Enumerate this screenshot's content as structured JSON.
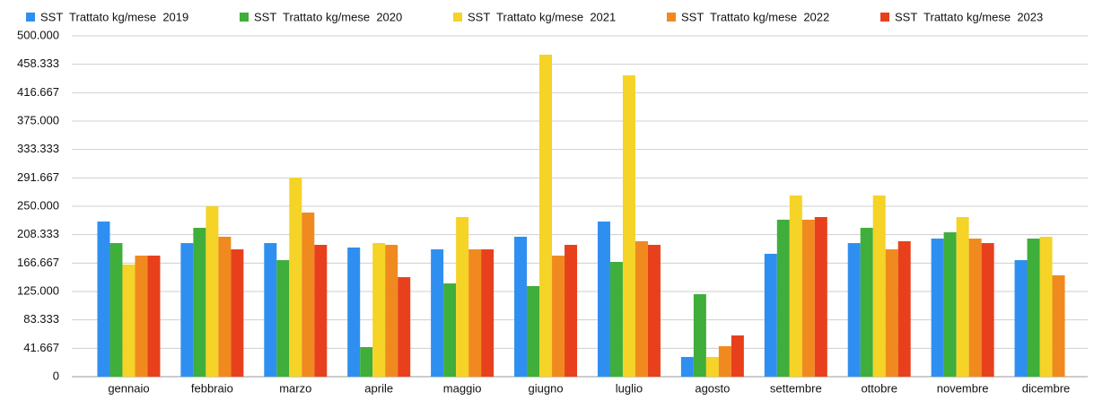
{
  "chart_data": {
    "type": "bar",
    "categories": [
      "gennaio",
      "febbraio",
      "marzo",
      "aprile",
      "maggio",
      "giugno",
      "luglio",
      "agosto",
      "settembre",
      "ottobre",
      "novembre",
      "dicembre"
    ],
    "series": [
      {
        "name": "SST  Trattato kg/mese  2019",
        "color": "#2f8ff0",
        "values": [
          227600,
          196000,
          196000,
          189500,
          186800,
          205300,
          227600,
          28900,
          180300,
          196000,
          202600,
          171000
        ]
      },
      {
        "name": "SST  Trattato kg/mese  2020",
        "color": "#3fae3a",
        "values": [
          196000,
          218400,
          171000,
          43400,
          136800,
          132900,
          168400,
          121000,
          230300,
          218400,
          211800,
          202600
        ]
      },
      {
        "name": "SST  Trattato kg/mese  2021",
        "color": "#f5d327",
        "values": [
          164500,
          250000,
          292000,
          196000,
          234200,
          472400,
          442100,
          28900,
          265800,
          265800,
          234200,
          205300
        ]
      },
      {
        "name": "SST  Trattato kg/mese  2022",
        "color": "#f08a1f",
        "values": [
          177600,
          205300,
          240800,
          193400,
          186800,
          177600,
          198700,
          44700,
          230300,
          186800,
          202600,
          148700
        ]
      },
      {
        "name": "SST  Trattato kg/mese  2023",
        "color": "#e8401c",
        "values": [
          177600,
          186800,
          193400,
          146000,
          186800,
          193400,
          193400,
          60500,
          234200,
          198700,
          196000,
          null
        ]
      }
    ],
    "ylim": [
      0,
      500000
    ],
    "yticks": [
      0,
      {
        "value": 41667,
        "label": "41.667"
      },
      {
        "value": 83333,
        "label": "83.333"
      },
      {
        "value": 125000,
        "label": "125.000"
      },
      {
        "value": 166667,
        "label": "166.667"
      },
      {
        "value": 208333,
        "label": "208.333"
      },
      {
        "value": 250000,
        "label": "250.000"
      },
      {
        "value": 291667,
        "label": "291.667"
      },
      {
        "value": 333333,
        "label": "333.333"
      },
      {
        "value": 375000,
        "label": "375.000"
      },
      {
        "value": 416667,
        "label": "416.667"
      },
      {
        "value": 458333,
        "label": "458.333"
      },
      {
        "value": 500000,
        "label": "500.000"
      }
    ],
    "grid": true,
    "legend": "top"
  }
}
